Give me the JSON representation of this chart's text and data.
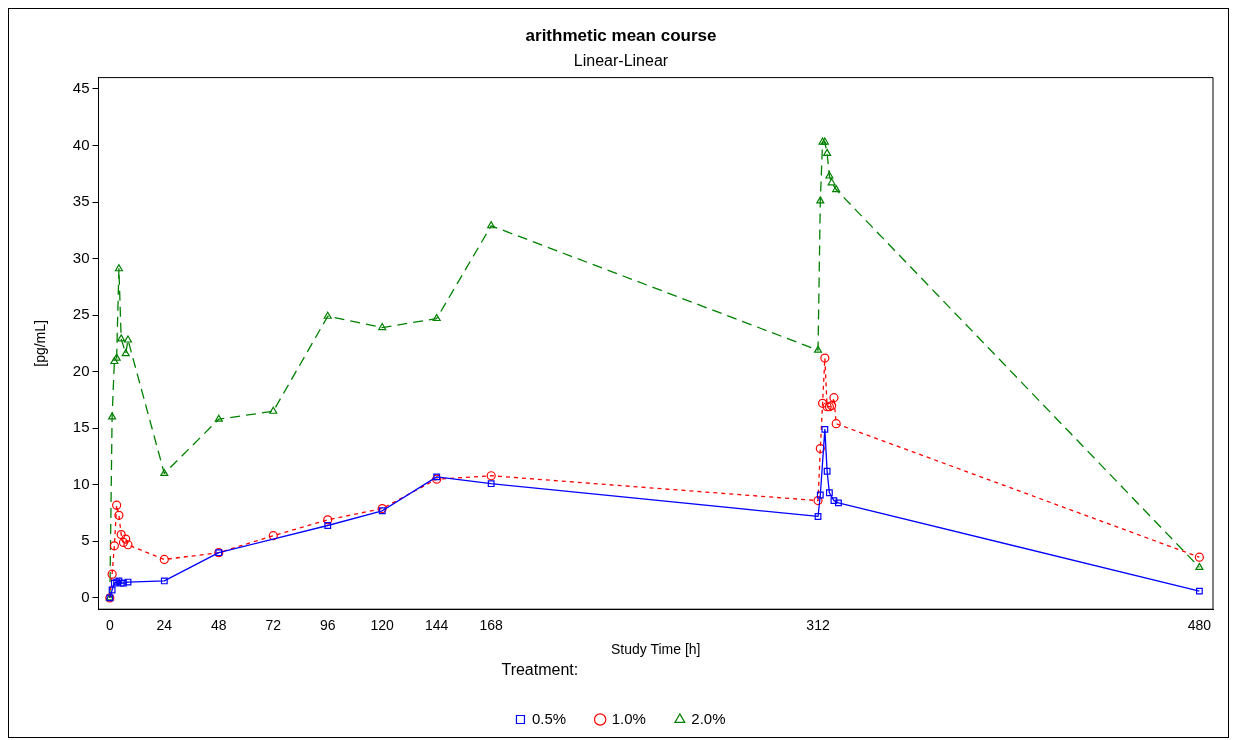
{
  "chart_data": {
    "type": "line",
    "title": "arithmetic mean course",
    "subtitle": "Linear-Linear",
    "xlabel": "Study Time [h]",
    "ylabel": "[pg/mL]",
    "legend_title": "Treatment:",
    "legend": "bottom",
    "grid": false,
    "xlim": [
      -5,
      486
    ],
    "xticks": [
      0,
      24,
      48,
      72,
      96,
      120,
      144,
      168,
      312,
      480
    ],
    "ylim": [
      -1,
      46
    ],
    "yticks": [
      0,
      5,
      10,
      15,
      20,
      25,
      30,
      35,
      40,
      45
    ],
    "series": [
      {
        "name": "0.5%",
        "color": "#0000ff",
        "marker": "square",
        "line_style": "solid",
        "x": [
          0,
          1,
          2,
          3,
          4,
          5,
          6,
          8,
          24,
          48,
          96,
          120,
          144,
          168,
          312,
          313,
          315,
          316,
          317,
          319,
          321,
          480
        ],
        "values": [
          0,
          0.7,
          1.3,
          1.4,
          1.5,
          1.3,
          1.3,
          1.4,
          1.5,
          4.0,
          6.4,
          7.7,
          10.7,
          10.1,
          7.2,
          9.1,
          14.9,
          11.2,
          9.3,
          8.6,
          8.4,
          0.6
        ]
      },
      {
        "name": "1.0%",
        "color": "#ff0000",
        "marker": "circle",
        "line_style": "dotted",
        "x": [
          0,
          1,
          2,
          3,
          4,
          5,
          6,
          7,
          8,
          24,
          48,
          72,
          96,
          120,
          144,
          168,
          312,
          313,
          314,
          315,
          316,
          317,
          318,
          319,
          320,
          480
        ],
        "values": [
          0,
          2.1,
          4.6,
          8.2,
          7.3,
          5.6,
          4.9,
          5.2,
          4.7,
          3.4,
          4.0,
          5.5,
          6.9,
          7.9,
          10.5,
          10.8,
          8.6,
          13.2,
          17.2,
          21.2,
          16.9,
          16.9,
          17.0,
          17.7,
          15.4,
          3.6
        ]
      },
      {
        "name": "2.0%",
        "color": "#008000",
        "marker": "triangle",
        "line_style": "dashed",
        "x": [
          0,
          1,
          2,
          3,
          4,
          5,
          7,
          8,
          24,
          48,
          72,
          96,
          120,
          144,
          168,
          312,
          313,
          314,
          315,
          316,
          317,
          318,
          320,
          480
        ],
        "values": [
          0,
          16.0,
          20.9,
          21.2,
          29.1,
          22.9,
          21.6,
          22.8,
          11.0,
          15.8,
          16.5,
          24.9,
          23.9,
          24.7,
          32.9,
          21.9,
          35.1,
          40.3,
          40.3,
          39.3,
          37.3,
          36.7,
          36.1,
          2.7
        ]
      }
    ]
  }
}
